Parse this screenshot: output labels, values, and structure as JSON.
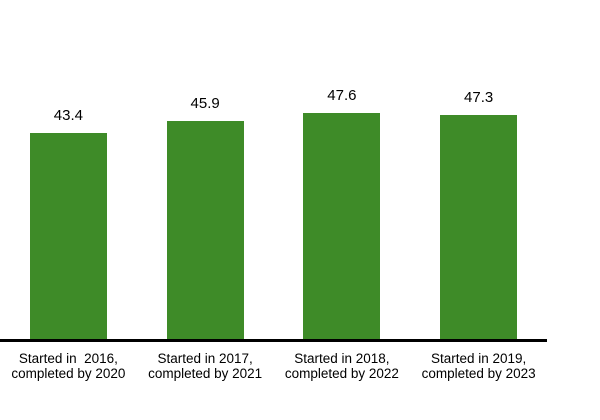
{
  "chart_data": {
    "type": "bar",
    "title": "",
    "xlabel": "",
    "ylabel": "",
    "categories": [
      "Started in  2016,\ncompleted by 2020",
      "Started in 2017,\ncompleted by 2021",
      "Started in 2018,\ncompleted by 2022",
      "Started in 2019,\ncompleted by 2023"
    ],
    "values": [
      43.4,
      45.9,
      47.6,
      47.3
    ],
    "value_labels": [
      "43.4",
      "45.9",
      "47.6",
      "47.3"
    ],
    "grid": false,
    "legend": "none",
    "y_axis_visible": false,
    "x_axis_line_visible": true,
    "value_label_position": "above-bar",
    "colors": {
      "bar": "#3E8B28",
      "axis_line": "#000000",
      "text": "#000000",
      "background": "#FFFFFF"
    }
  }
}
